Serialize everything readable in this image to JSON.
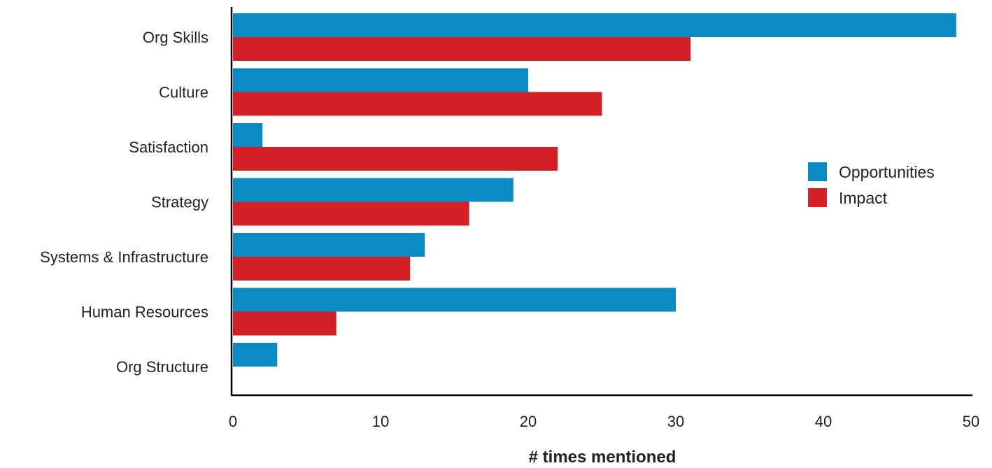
{
  "chart_data": {
    "type": "bar",
    "orientation": "horizontal",
    "categories": [
      "Org Skills",
      "Culture",
      "Satisfaction",
      "Strategy",
      "Systems & Infrastructure",
      "Human Resources",
      "Org Structure"
    ],
    "series": [
      {
        "name": "Opportunities",
        "color": "#0a8bc4",
        "values": [
          49,
          20,
          2,
          19,
          13,
          30,
          3
        ]
      },
      {
        "name": "Impact",
        "color": "#d41f26",
        "values": [
          31,
          25,
          22,
          16,
          12,
          7,
          0
        ]
      }
    ],
    "xlabel": "# times mentioned",
    "ylabel": "",
    "xlim": [
      0,
      50
    ],
    "xticks": [
      0,
      10,
      20,
      30,
      40,
      50
    ],
    "grid": false,
    "legend_position": "right"
  }
}
